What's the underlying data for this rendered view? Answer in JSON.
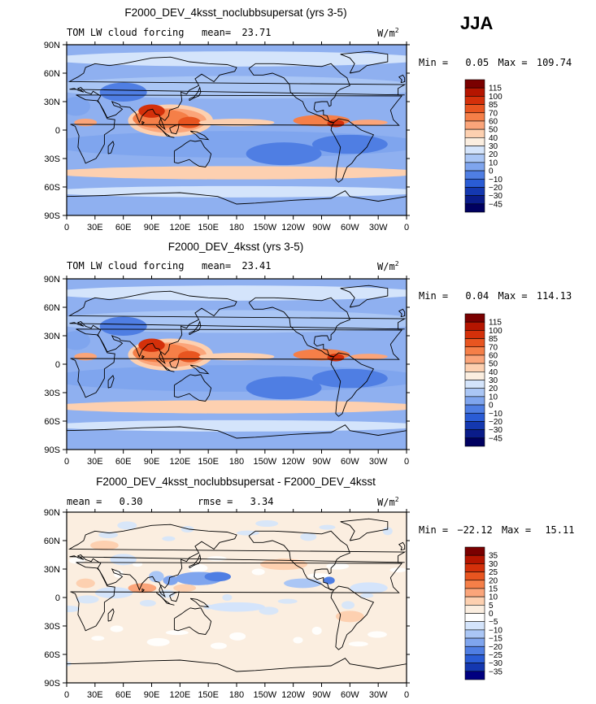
{
  "season": "JJA",
  "colors": {
    "frame": "#000000",
    "ocean_base": "#8fb0f0",
    "land_line": "#000000"
  },
  "chart_data": [
    {
      "type": "heatmap",
      "title": "F2000_DEV_4ksst_noclubbsupersat (yrs 3-5)",
      "variable": "TOM LW cloud forcing",
      "mean_label": "mean=",
      "mean_value": "23.71",
      "units": "W/m",
      "units_exp": "2",
      "min_label": "Min =",
      "min_value": "0.05",
      "max_label": "Max =",
      "max_value": "109.74",
      "xlabels": [
        "0",
        "30E",
        "60E",
        "90E",
        "120E",
        "150E",
        "180",
        "150W",
        "120W",
        "90W",
        "60W",
        "30W",
        "0"
      ],
      "ylabels": [
        "90N",
        "60N",
        "30N",
        "0",
        "30S",
        "60S",
        "90S"
      ],
      "colorbar_labels": [
        "115",
        "100",
        "85",
        "70",
        "60",
        "50",
        "40",
        "30",
        "20",
        "10",
        "0",
        "−10",
        "−20",
        "−30",
        "−45"
      ],
      "colorbar_colors": [
        "#7a0000",
        "#b51500",
        "#d4300a",
        "#e85520",
        "#f57f48",
        "#fba57a",
        "#fdd0b0",
        "#fbeee0",
        "#d4e4fb",
        "#aac6f5",
        "#7fa5ee",
        "#4f7ee3",
        "#2a5cd5",
        "#1438b0",
        "#0a1c8a",
        "#000060"
      ],
      "colormode": "full"
    },
    {
      "type": "heatmap",
      "title": "F2000_DEV_4ksst (yrs 3-5)",
      "variable": "TOM LW cloud forcing",
      "mean_label": "mean=",
      "mean_value": "23.41",
      "units": "W/m",
      "units_exp": "2",
      "min_label": "Min =",
      "min_value": "0.04",
      "max_label": "Max =",
      "max_value": "114.13",
      "xlabels": [
        "0",
        "30E",
        "60E",
        "90E",
        "120E",
        "150E",
        "180",
        "150W",
        "120W",
        "90W",
        "60W",
        "30W",
        "0"
      ],
      "ylabels": [
        "90N",
        "60N",
        "30N",
        "0",
        "30S",
        "60S",
        "90S"
      ],
      "colorbar_labels": [
        "115",
        "100",
        "85",
        "70",
        "60",
        "50",
        "40",
        "30",
        "20",
        "10",
        "0",
        "−10",
        "−20",
        "−30",
        "−45"
      ],
      "colorbar_colors": [
        "#7a0000",
        "#b51500",
        "#d4300a",
        "#e85520",
        "#f57f48",
        "#fba57a",
        "#fdd0b0",
        "#fbeee0",
        "#d4e4fb",
        "#aac6f5",
        "#7fa5ee",
        "#4f7ee3",
        "#2a5cd5",
        "#1438b0",
        "#0a1c8a",
        "#000060"
      ],
      "colormode": "full"
    },
    {
      "type": "heatmap",
      "title": "F2000_DEV_4ksst_noclubbsupersat - F2000_DEV_4ksst",
      "mean_label": "mean =",
      "mean_value": "0.30",
      "rmse_label": "rmse =",
      "rmse_value": "3.34",
      "units": "W/m",
      "units_exp": "2",
      "min_label": "Min =",
      "min_value": "−22.12",
      "max_label": "Max =",
      "max_value": "15.11",
      "xlabels": [
        "0",
        "30E",
        "60E",
        "90E",
        "120E",
        "150E",
        "180",
        "150W",
        "120W",
        "90W",
        "60W",
        "30W",
        "0"
      ],
      "ylabels": [
        "90N",
        "60N",
        "30N",
        "0",
        "30S",
        "60S",
        "90S"
      ],
      "colorbar_labels": [
        "35",
        "30",
        "25",
        "20",
        "15",
        "10",
        "5",
        "0",
        "−5",
        "−10",
        "−15",
        "−20",
        "−25",
        "−30",
        "−35"
      ],
      "colorbar_colors": [
        "#7a0000",
        "#b51500",
        "#d4300a",
        "#e85520",
        "#f57f48",
        "#fba57a",
        "#fdd0b0",
        "#fbeee0",
        "#ffffff",
        "#d4e4fb",
        "#aac6f5",
        "#7fa5ee",
        "#4f7ee3",
        "#2a5cd5",
        "#1438b0",
        "#000080"
      ],
      "colormode": "diff"
    }
  ]
}
